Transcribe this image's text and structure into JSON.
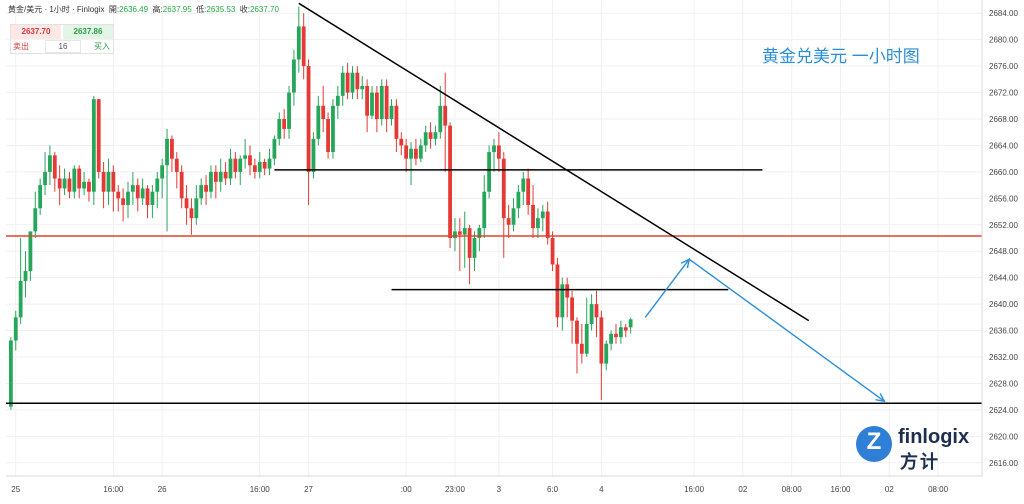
{
  "header": {
    "symbol": "黄金/美元 · 1小时 · Finlogix",
    "open_label": "開:",
    "open": "2636.49",
    "high_label": "高:",
    "high": "2637.95",
    "low_label": "低:",
    "low": "2635.53",
    "close_label": "收:",
    "close": "2637.70"
  },
  "trade": {
    "sell_price": "2637.70",
    "buy_price": "2637.86",
    "sell_label": "卖出",
    "buy_label": "买入",
    "quantity": "16"
  },
  "title": "黄金兑美元 一小时图",
  "logo": {
    "name": "finlogix",
    "cn": "方计"
  },
  "colors": {
    "up": "#26a65b",
    "down": "#e53935",
    "resistance": "#e0452c",
    "arrow": "#2b8fd8",
    "trendline": "#000000"
  },
  "chart_data": {
    "type": "candlestick",
    "y_axis": {
      "min": 2614,
      "max": 2686,
      "ticks": [
        "2684.00",
        "2680.00",
        "2676.00",
        "2672.00",
        "2668.00",
        "2664.00",
        "2660.00",
        "2656.00",
        "2652.00",
        "2648.00",
        "2644.00",
        "2640.00",
        "2636.00",
        "2632.00",
        "2628.00",
        "2624.00",
        "2620.00",
        "2616.00"
      ]
    },
    "x_axis": {
      "min": 0,
      "max": 200,
      "ticks": [
        {
          "x": 2,
          "label": "25"
        },
        {
          "x": 22,
          "label": "16:00"
        },
        {
          "x": 32,
          "label": "26"
        },
        {
          "x": 52,
          "label": "16:00"
        },
        {
          "x": 62,
          "label": "27"
        },
        {
          "x": 82,
          "label": ":00"
        },
        {
          "x": 92,
          "label": "23:00"
        },
        {
          "x": 101,
          "label": "3"
        },
        {
          "x": 112,
          "label": "6:0"
        },
        {
          "x": 122,
          "label": "4"
        },
        {
          "x": 141,
          "label": "16:00"
        },
        {
          "x": 151,
          "label": "02"
        },
        {
          "x": 161,
          "label": "08:00"
        },
        {
          "x": 171,
          "label": "16:00"
        },
        {
          "x": 181,
          "label": "02"
        },
        {
          "x": 191,
          "label": "08:00"
        }
      ]
    },
    "candles": [
      [
        2624.5,
        2634.5,
        2624.0,
        2635.0
      ],
      [
        2634.5,
        2638.0,
        2633.0,
        2639.0
      ],
      [
        2638.0,
        2643.5,
        2637.0,
        2650.0
      ],
      [
        2643.5,
        2645.0,
        2641.0,
        2648.0
      ],
      [
        2645.0,
        2651.0,
        2643.5,
        2651.0
      ],
      [
        2651.0,
        2654.5,
        2650.0,
        2657.0
      ],
      [
        2654.5,
        2658.0,
        2653.5,
        2659.0
      ],
      [
        2658.0,
        2660.0,
        2656.5,
        2663.0
      ],
      [
        2660.0,
        2662.5,
        2658.0,
        2664.0
      ],
      [
        2662.5,
        2659.0,
        2657.0,
        2663.0
      ],
      [
        2659.0,
        2657.5,
        2655.0,
        2661.0
      ],
      [
        2657.5,
        2659.0,
        2656.5,
        2660.5
      ],
      [
        2659.0,
        2657.0,
        2656.0,
        2660.0
      ],
      [
        2657.0,
        2660.5,
        2656.0,
        2661.0
      ],
      [
        2660.5,
        2657.5,
        2656.0,
        2661.0
      ],
      [
        2657.5,
        2658.5,
        2656.5,
        2660.0
      ],
      [
        2658.5,
        2657.0,
        2655.5,
        2659.0
      ],
      [
        2657.0,
        2671.0,
        2655.0,
        2671.5
      ],
      [
        2671.0,
        2660.0,
        2659.0,
        2671.0
      ],
      [
        2660.0,
        2657.0,
        2654.5,
        2661.5
      ],
      [
        2657.0,
        2660.0,
        2655.0,
        2662.0
      ],
      [
        2660.0,
        2657.0,
        2654.0,
        2661.0
      ],
      [
        2657.0,
        2656.0,
        2654.0,
        2658.0
      ],
      [
        2656.0,
        2655.0,
        2652.5,
        2657.5
      ],
      [
        2655.0,
        2657.0,
        2653.0,
        2658.5
      ],
      [
        2657.0,
        2658.0,
        2655.0,
        2660.0
      ],
      [
        2658.0,
        2656.0,
        2654.0,
        2659.0
      ],
      [
        2656.0,
        2657.5,
        2655.0,
        2659.0
      ],
      [
        2657.5,
        2655.0,
        2653.0,
        2658.0
      ],
      [
        2655.0,
        2657.0,
        2653.0,
        2658.0
      ],
      [
        2657.0,
        2659.0,
        2654.5,
        2660.0
      ],
      [
        2659.0,
        2661.0,
        2656.0,
        2662.0
      ],
      [
        2661.0,
        2665.0,
        2651.0,
        2666.5
      ],
      [
        2665.0,
        2662.0,
        2660.0,
        2665.5
      ],
      [
        2662.0,
        2660.0,
        2657.5,
        2663.0
      ],
      [
        2660.0,
        2656.0,
        2654.5,
        2661.0
      ],
      [
        2656.0,
        2654.5,
        2652.0,
        2658.0
      ],
      [
        2654.5,
        2653.0,
        2650.5,
        2656.0
      ],
      [
        2653.0,
        2656.0,
        2652.0,
        2658.0
      ],
      [
        2656.0,
        2658.0,
        2655.0,
        2659.0
      ],
      [
        2658.0,
        2657.0,
        2655.0,
        2659.5
      ],
      [
        2657.0,
        2660.0,
        2656.0,
        2661.0
      ],
      [
        2660.0,
        2658.5,
        2656.0,
        2661.0
      ],
      [
        2658.5,
        2660.0,
        2657.0,
        2662.0
      ],
      [
        2660.0,
        2659.0,
        2658.0,
        2661.5
      ],
      [
        2659.0,
        2662.0,
        2658.0,
        2663.5
      ],
      [
        2662.0,
        2660.0,
        2659.0,
        2663.0
      ],
      [
        2660.0,
        2662.0,
        2658.0,
        2662.5
      ],
      [
        2662.0,
        2662.5,
        2660.5,
        2665.0
      ],
      [
        2662.5,
        2661.0,
        2659.5,
        2664.0
      ],
      [
        2661.0,
        2660.0,
        2659.0,
        2662.0
      ],
      [
        2660.0,
        2661.5,
        2659.0,
        2663.0
      ],
      [
        2661.5,
        2660.5,
        2659.5,
        2662.0
      ],
      [
        2660.5,
        2662.0,
        2659.5,
        2663.5
      ],
      [
        2662.0,
        2665.0,
        2661.0,
        2665.5
      ],
      [
        2665.0,
        2668.0,
        2664.0,
        2669.0
      ],
      [
        2668.0,
        2666.5,
        2665.0,
        2669.5
      ],
      [
        2666.5,
        2672.0,
        2665.0,
        2673.0
      ],
      [
        2672.0,
        2677.0,
        2670.0,
        2678.5
      ],
      [
        2677.0,
        2682.0,
        2675.0,
        2685.0
      ],
      [
        2682.0,
        2676.0,
        2674.0,
        2684.0
      ],
      [
        2676.0,
        2660.0,
        2655.0,
        2677.0
      ],
      [
        2660.0,
        2665.0,
        2659.0,
        2666.0
      ],
      [
        2665.0,
        2670.0,
        2664.0,
        2671.5
      ],
      [
        2670.0,
        2668.0,
        2666.0,
        2673.0
      ],
      [
        2668.0,
        2663.0,
        2662.0,
        2669.0
      ],
      [
        2663.0,
        2670.0,
        2662.0,
        2671.0
      ],
      [
        2670.0,
        2671.5,
        2668.0,
        2673.0
      ],
      [
        2671.5,
        2675.0,
        2670.0,
        2676.0
      ],
      [
        2675.0,
        2672.0,
        2671.0,
        2676.5
      ],
      [
        2672.0,
        2675.0,
        2671.0,
        2676.0
      ],
      [
        2675.0,
        2672.5,
        2671.0,
        2676.0
      ],
      [
        2672.5,
        2673.0,
        2671.0,
        2674.5
      ],
      [
        2673.0,
        2668.5,
        2666.0,
        2674.0
      ],
      [
        2668.5,
        2672.0,
        2668.0,
        2673.0
      ],
      [
        2672.0,
        2668.0,
        2666.0,
        2673.0
      ],
      [
        2668.0,
        2673.0,
        2667.0,
        2674.0
      ],
      [
        2673.0,
        2668.0,
        2666.0,
        2674.0
      ],
      [
        2668.0,
        2670.0,
        2667.0,
        2671.0
      ],
      [
        2670.0,
        2665.0,
        2663.0,
        2671.0
      ],
      [
        2665.0,
        2664.0,
        2662.5,
        2666.0
      ],
      [
        2664.0,
        2662.0,
        2660.0,
        2665.0
      ],
      [
        2662.0,
        2663.5,
        2658.0,
        2664.5
      ],
      [
        2663.5,
        2662.0,
        2661.0,
        2665.0
      ],
      [
        2662.0,
        2664.0,
        2661.5,
        2665.0
      ],
      [
        2664.0,
        2666.0,
        2663.0,
        2667.0
      ],
      [
        2666.0,
        2665.0,
        2663.5,
        2667.5
      ],
      [
        2665.0,
        2666.0,
        2664.0,
        2667.0
      ],
      [
        2666.0,
        2670.0,
        2665.0,
        2673.0
      ],
      [
        2670.0,
        2667.0,
        2660.0,
        2675.0
      ],
      [
        2667.0,
        2650.0,
        2648.5,
        2667.5
      ],
      [
        2650.0,
        2651.0,
        2648.0,
        2653.0
      ],
      [
        2651.0,
        2650.5,
        2645.0,
        2653.0
      ],
      [
        2650.5,
        2651.5,
        2645.5,
        2654.0
      ],
      [
        2651.5,
        2647.0,
        2643.0,
        2652.0
      ],
      [
        2647.0,
        2650.0,
        2645.0,
        2651.0
      ],
      [
        2650.0,
        2651.5,
        2648.0,
        2652.0
      ],
      [
        2651.5,
        2657.0,
        2650.0,
        2659.5
      ],
      [
        2657.0,
        2663.0,
        2656.0,
        2664.0
      ],
      [
        2663.0,
        2664.0,
        2660.0,
        2665.0
      ],
      [
        2664.0,
        2662.0,
        2660.0,
        2666.0
      ],
      [
        2662.0,
        2653.0,
        2647.0,
        2663.0
      ],
      [
        2653.0,
        2652.0,
        2650.0,
        2655.0
      ],
      [
        2652.0,
        2654.5,
        2651.0,
        2656.0
      ],
      [
        2654.5,
        2657.0,
        2653.0,
        2658.0
      ],
      [
        2657.0,
        2659.0,
        2655.0,
        2660.0
      ],
      [
        2659.0,
        2655.0,
        2653.5,
        2660.5
      ],
      [
        2655.0,
        2651.5,
        2650.0,
        2658.0
      ],
      [
        2651.5,
        2653.0,
        2650.0,
        2654.5
      ],
      [
        2653.0,
        2654.0,
        2651.0,
        2655.0
      ],
      [
        2654.0,
        2650.0,
        2649.0,
        2655.5
      ],
      [
        2650.0,
        2646.0,
        2645.0,
        2651.0
      ],
      [
        2646.0,
        2638.0,
        2636.5,
        2647.0
      ],
      [
        2638.0,
        2643.0,
        2636.0,
        2644.0
      ],
      [
        2643.0,
        2641.0,
        2638.0,
        2644.0
      ],
      [
        2641.0,
        2637.5,
        2634.0,
        2642.0
      ],
      [
        2637.5,
        2634.0,
        2629.5,
        2638.0
      ],
      [
        2634.0,
        2632.5,
        2631.0,
        2637.0
      ],
      [
        2632.5,
        2637.0,
        2632.0,
        2641.0
      ],
      [
        2637.0,
        2640.0,
        2636.0,
        2641.5
      ],
      [
        2640.0,
        2638.0,
        2635.0,
        2642.0
      ],
      [
        2638.0,
        2631.0,
        2625.5,
        2639.0
      ],
      [
        2631.0,
        2634.0,
        2630.0,
        2634.5
      ],
      [
        2634.0,
        2635.5,
        2633.0,
        2636.0
      ],
      [
        2635.5,
        2635.0,
        2634.0,
        2637.0
      ],
      [
        2635.0,
        2636.5,
        2634.0,
        2637.5
      ],
      [
        2636.5,
        2636.0,
        2635.0,
        2637.0
      ],
      [
        2636.49,
        2637.7,
        2635.53,
        2637.95
      ]
    ],
    "horizontal_lines": [
      {
        "name": "support-2625",
        "value": 2625.0,
        "x_start": 0,
        "x_end": 200,
        "color": "#000000"
      },
      {
        "name": "resistance-2650",
        "value": 2650.3,
        "x_start": 0,
        "x_end": 200,
        "color": "#e0452c"
      },
      {
        "name": "level-2660",
        "value": 2660.3,
        "x_start": 55,
        "x_end": 155,
        "color": "#000000"
      },
      {
        "name": "level-2642",
        "value": 2642.2,
        "x_start": 79,
        "x_end": 148,
        "color": "#000000"
      }
    ],
    "trendline": {
      "from": [
        60,
        2685.5
      ],
      "to": [
        164.5,
        2637.5
      ]
    },
    "forecast_path": [
      [
        131,
        2638.0
      ],
      [
        140,
        2646.8
      ],
      [
        180,
        2625.3
      ]
    ]
  }
}
